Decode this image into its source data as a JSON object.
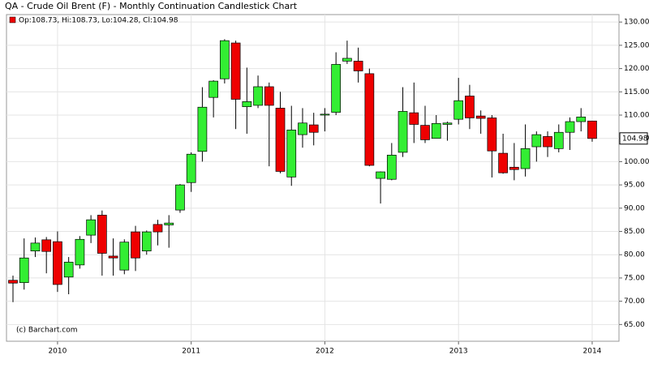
{
  "chart_data": {
    "type": "candlestick",
    "title": "QA - Crude Oil Brent (F) - Monthly Continuation Candlestick Chart",
    "legend_text": "Op:108.73, Hi:108.73, Lo:104.28, Cl:104.98",
    "credit": "(c) Barchart.com",
    "categories": [
      null,
      null,
      null,
      null,
      "2010",
      null,
      null,
      null,
      null,
      null,
      null,
      null,
      null,
      null,
      null,
      null,
      "2011",
      null,
      null,
      null,
      null,
      null,
      null,
      null,
      null,
      null,
      null,
      null,
      "2012",
      null,
      null,
      null,
      null,
      null,
      null,
      null,
      null,
      null,
      null,
      null,
      "2013",
      null,
      null,
      null,
      null,
      null,
      null,
      null,
      null,
      null,
      null,
      null,
      "2014"
    ],
    "open": [
      74.5,
      74,
      80.8,
      83.2,
      82.8,
      75.2,
      77.8,
      84.2,
      88.5,
      79.7,
      76.7,
      84.9,
      80.8,
      86.5,
      86.4,
      89.6,
      95.5,
      102.2,
      113.8,
      117.8,
      125.5,
      111.8,
      112.1,
      116.1,
      111.5,
      96.7,
      105.8,
      107.9,
      110,
      110.6,
      121.6,
      121.6,
      118.9,
      96.4,
      96.2,
      102,
      110.5,
      107.8,
      105,
      108,
      109.1,
      114.1,
      109.8,
      109.4,
      101.8,
      98.8,
      98.5,
      103.2,
      105.4,
      102.8,
      106.3,
      108.6,
      108.73
    ],
    "high": [
      75.5,
      83.5,
      83.7,
      83.8,
      85,
      79.5,
      84,
      88.5,
      89.5,
      83.5,
      83.3,
      86.2,
      85.2,
      87.5,
      88.5,
      95.2,
      102,
      116,
      117.5,
      126.3,
      126,
      120.2,
      118.5,
      117,
      115,
      112,
      111.5,
      110.5,
      111.5,
      123.5,
      126,
      124.5,
      120,
      97.9,
      104,
      116,
      117,
      112,
      110,
      108.6,
      118,
      116.5,
      111,
      110,
      106,
      104,
      108,
      106.5,
      106.5,
      108,
      109.5,
      111.5,
      108.73
    ],
    "low": [
      69.8,
      72.5,
      79.5,
      76,
      72,
      71.5,
      77,
      82.5,
      75.5,
      75.5,
      75.8,
      76.5,
      80,
      82,
      81.5,
      89,
      93.5,
      100,
      109.5,
      116.8,
      107,
      106,
      111.5,
      99,
      97.5,
      94.8,
      103,
      103.5,
      106.5,
      110,
      121,
      117,
      99,
      91,
      96,
      101,
      104,
      104,
      105,
      104.5,
      108,
      107,
      106,
      96.6,
      97.4,
      96,
      96.8,
      100,
      101,
      102,
      102.5,
      106.5,
      104.28
    ],
    "close": [
      73.9,
      79.3,
      82.5,
      80.7,
      73.6,
      78.4,
      83.3,
      87.5,
      80.3,
      79.3,
      82.7,
      79.3,
      84.9,
      84.9,
      86.8,
      95,
      101.6,
      111.7,
      117.3,
      126,
      113.4,
      112.9,
      116.1,
      112.1,
      97.9,
      106.8,
      108.3,
      106.3,
      110.2,
      120.9,
      122.2,
      119.5,
      99.2,
      97.8,
      101.4,
      110.8,
      108,
      104.7,
      108.2,
      108.3,
      113.1,
      109.4,
      109.3,
      102.3,
      97.6,
      98.3,
      102.8,
      105.8,
      103.2,
      106.3,
      108.6,
      109.6,
      104.98
    ],
    "up_color": "#33ee33",
    "down_color": "#ee0000",
    "ylim": [
      61.4,
      131.6
    ],
    "yticks": [
      {
        "value": 65,
        "label": "65.00"
      },
      {
        "value": 70,
        "label": "70.00"
      },
      {
        "value": 75,
        "label": "75.00"
      },
      {
        "value": 80,
        "label": "80.00"
      },
      {
        "value": 85,
        "label": "85.00"
      },
      {
        "value": 90,
        "label": "90.00"
      },
      {
        "value": 95,
        "label": "95.00"
      },
      {
        "value": 100,
        "label": "100.00"
      },
      {
        "value": 105,
        "label": "105.00"
      },
      {
        "value": 110,
        "label": "110.00"
      },
      {
        "value": 115,
        "label": "115.00"
      },
      {
        "value": 120,
        "label": "120.00"
      },
      {
        "value": 125,
        "label": "125.00"
      },
      {
        "value": 130,
        "label": "130.00"
      }
    ],
    "grid": true
  }
}
